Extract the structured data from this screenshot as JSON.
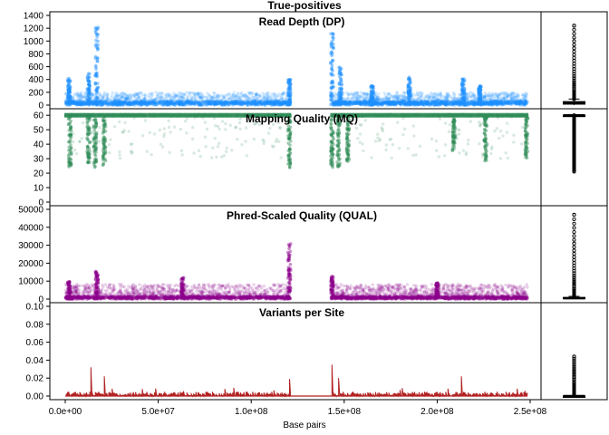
{
  "figure": {
    "title": "True-positives",
    "xlabel": "Base pairs"
  },
  "chart_data": [
    {
      "type": "scatter",
      "title": "Read Depth (DP)",
      "color": "#1e90ff",
      "xlim": [
        0,
        250000000
      ],
      "ylim": [
        0,
        1400
      ],
      "yticks": [
        {
          "value": 0,
          "label": "0"
        },
        {
          "value": 200,
          "label": "200"
        },
        {
          "value": 400,
          "label": "400"
        },
        {
          "value": 600,
          "label": "600"
        },
        {
          "value": 800,
          "label": "800"
        },
        {
          "value": 1000,
          "label": "1000"
        },
        {
          "value": 1200,
          "label": "1200"
        },
        {
          "value": 1400,
          "label": "1400"
        }
      ],
      "gap": [
        121000000,
        143000000
      ],
      "base": 60,
      "spread": 80,
      "spikes": [
        {
          "x": 17000000,
          "max": 1220
        },
        {
          "x": 12500000,
          "max": 500
        },
        {
          "x": 2000000,
          "max": 420
        },
        {
          "x": 120500000,
          "max": 400
        },
        {
          "x": 143500000,
          "max": 1140
        },
        {
          "x": 148000000,
          "max": 600
        },
        {
          "x": 165000000,
          "max": 300
        },
        {
          "x": 185000000,
          "max": 450
        },
        {
          "x": 214000000,
          "max": 420
        },
        {
          "x": 223000000,
          "max": 300
        }
      ],
      "boxplot": {
        "median": 35,
        "q1": 15,
        "q3": 55,
        "whisker_low": 0,
        "whisker_high": 95,
        "outlier_max": 1240
      }
    },
    {
      "type": "scatter",
      "title": "Mapping Quality (MQ)",
      "color": "#2e8b57",
      "xlim": [
        0,
        250000000
      ],
      "ylim": [
        0,
        62
      ],
      "yticks": [
        {
          "value": 0,
          "label": "0"
        },
        {
          "value": 10,
          "label": "10"
        },
        {
          "value": 20,
          "label": "20"
        },
        {
          "value": 30,
          "label": "30"
        },
        {
          "value": 40,
          "label": "40"
        },
        {
          "value": 50,
          "label": "50"
        },
        {
          "value": 60,
          "label": "60"
        }
      ],
      "gap": [
        121000000,
        143000000
      ],
      "base": 60,
      "spikes": [
        {
          "x": 2500000,
          "max": 24
        },
        {
          "x": 12500000,
          "max": 27
        },
        {
          "x": 16000000,
          "max": 23
        },
        {
          "x": 21000000,
          "max": 25
        },
        {
          "x": 120500000,
          "max": 23
        },
        {
          "x": 143500000,
          "max": 24
        },
        {
          "x": 147000000,
          "max": 24
        },
        {
          "x": 152000000,
          "max": 28
        },
        {
          "x": 209000000,
          "max": 35
        },
        {
          "x": 226000000,
          "max": 28
        },
        {
          "x": 248000000,
          "max": 30
        }
      ],
      "boxplot": {
        "median": 60,
        "q1": 60,
        "q3": 60,
        "whisker_low": 60,
        "whisker_high": 60,
        "outlier_min": 21
      }
    },
    {
      "type": "scatter",
      "title": "Phred-Scaled Quality (QUAL)",
      "color": "#8b008b",
      "xlim": [
        0,
        250000000
      ],
      "ylim": [
        0,
        50000
      ],
      "yticks": [
        {
          "value": 0,
          "label": "0"
        },
        {
          "value": 10000,
          "label": "10000"
        },
        {
          "value": 20000,
          "label": "20000"
        },
        {
          "value": 30000,
          "label": "30000"
        },
        {
          "value": 40000,
          "label": "40000"
        },
        {
          "value": 50000,
          "label": "50000"
        }
      ],
      "gap": [
        121000000,
        143000000
      ],
      "base": 1500,
      "spread": 3500,
      "spikes": [
        {
          "x": 17000000,
          "max": 16000
        },
        {
          "x": 120500000,
          "max": 31000
        },
        {
          "x": 143500000,
          "max": 13000
        },
        {
          "x": 63000000,
          "max": 12000
        },
        {
          "x": 2000000,
          "max": 10000
        },
        {
          "x": 200000000,
          "max": 9000
        }
      ],
      "boxplot": {
        "median": 500,
        "q1": 200,
        "q3": 900,
        "whisker_low": 0,
        "whisker_high": 1500,
        "outlier_max": 47000
      }
    },
    {
      "type": "line",
      "title": "Variants per Site",
      "color": "#b22222",
      "xlim": [
        0,
        250000000
      ],
      "ylim": [
        0,
        0.1
      ],
      "yticks": [
        {
          "value": 0,
          "label": "0.00"
        },
        {
          "value": 0.02,
          "label": "0.02"
        },
        {
          "value": 0.04,
          "label": "0.04"
        },
        {
          "value": 0.06,
          "label": "0.06"
        },
        {
          "value": 0.08,
          "label": "0.08"
        },
        {
          "value": 0.1,
          "label": "0.10"
        }
      ],
      "xticks": [
        {
          "value": 0,
          "label": "0.0e+00"
        },
        {
          "value": 50000000,
          "label": "5.0e+07"
        },
        {
          "value": 100000000,
          "label": "1.0e+08"
        },
        {
          "value": 150000000,
          "label": "1.5e+08"
        },
        {
          "value": 200000000,
          "label": "2.0e+08"
        },
        {
          "value": 250000000,
          "label": "2.5e+08"
        }
      ],
      "gap": [
        121000000,
        143000000
      ],
      "base": 0.003,
      "spikes": [
        {
          "x": 14000000,
          "max": 0.032
        },
        {
          "x": 16500000,
          "max": 0.044
        },
        {
          "x": 21000000,
          "max": 0.022
        },
        {
          "x": 58500000,
          "max": 0.024
        },
        {
          "x": 120500000,
          "max": 0.019
        },
        {
          "x": 143500000,
          "max": 0.035
        },
        {
          "x": 147000000,
          "max": 0.02
        },
        {
          "x": 213000000,
          "max": 0.022
        }
      ],
      "boxplot": {
        "median": 0,
        "q1": 0,
        "q3": 0,
        "whisker_low": 0,
        "whisker_high": 0,
        "outlier_max": 0.044
      }
    }
  ]
}
